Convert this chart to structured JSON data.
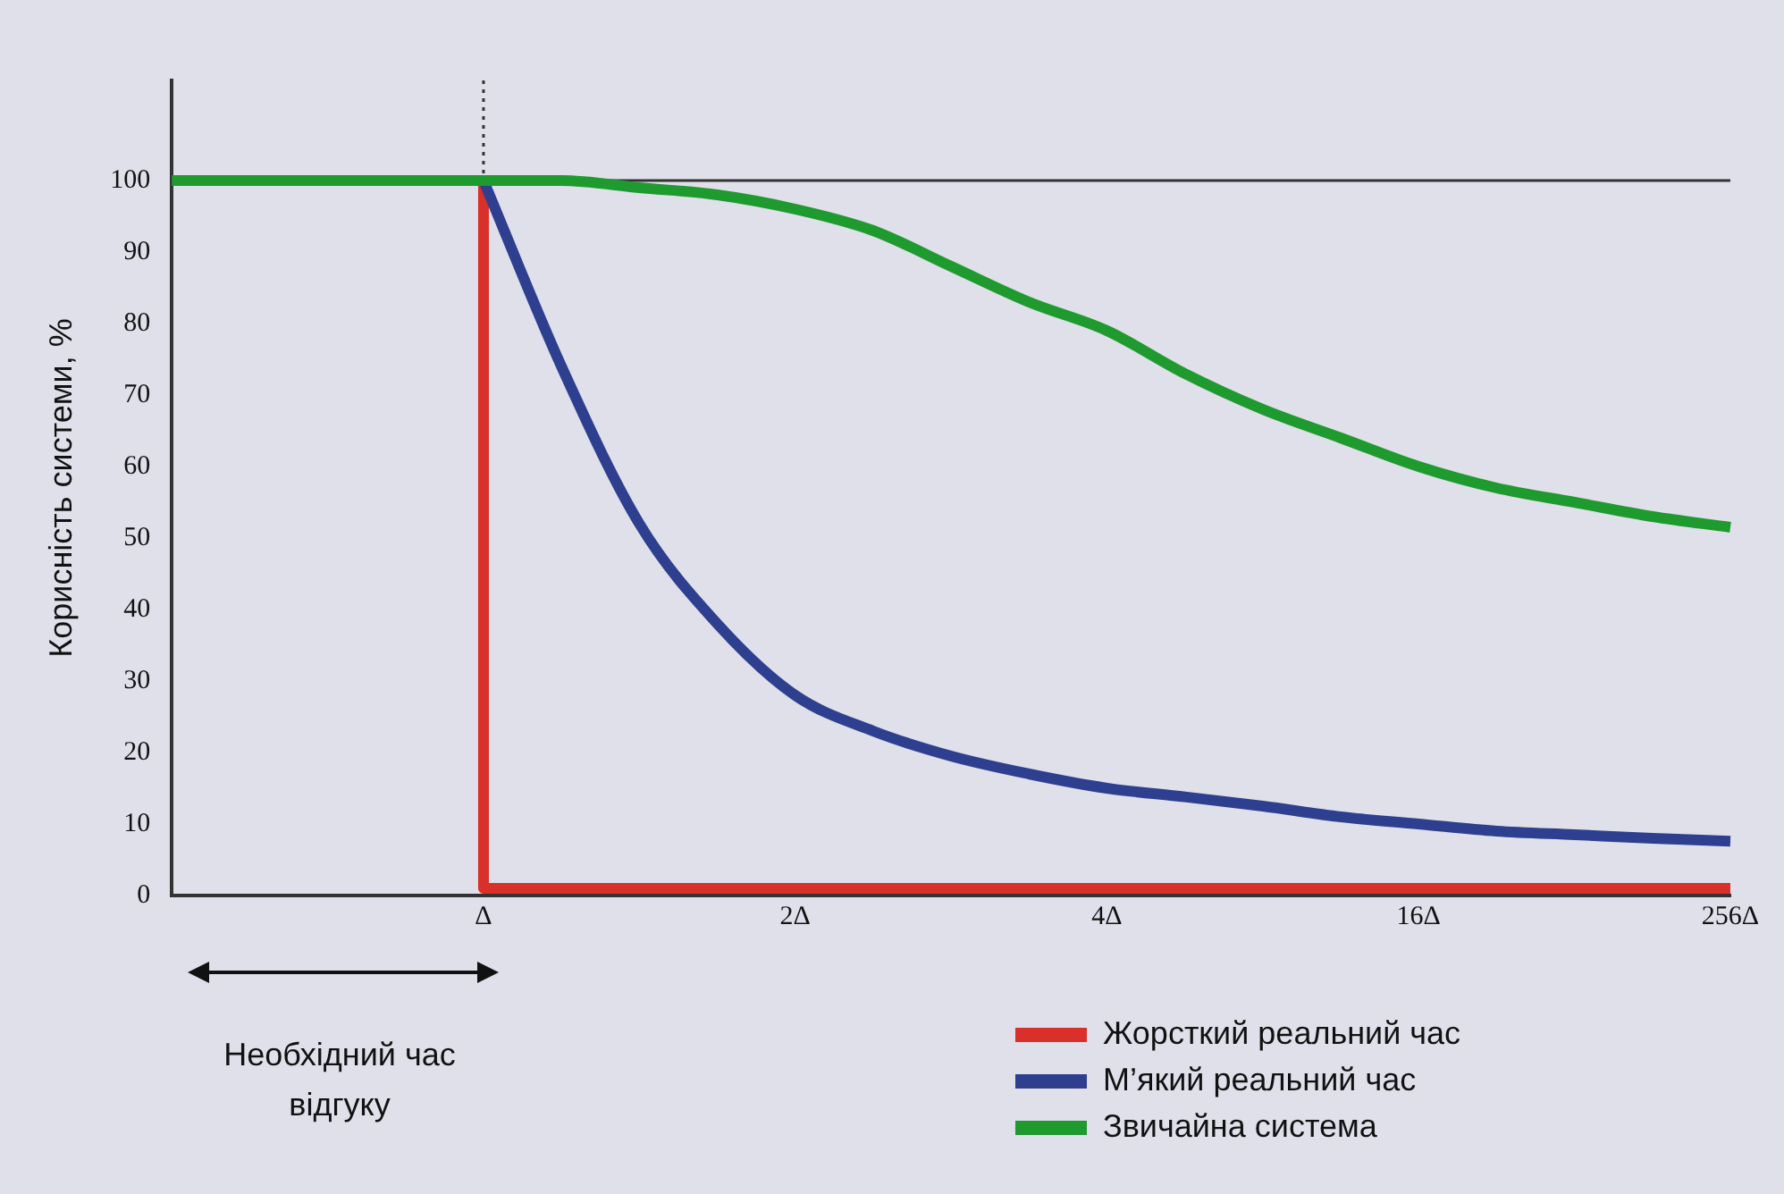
{
  "chart_data": {
    "type": "line",
    "ylabel": "Корисність системи, %",
    "categories": [
      null,
      null,
      null,
      null,
      "Δ",
      null,
      null,
      null,
      "2Δ",
      null,
      null,
      null,
      "4Δ",
      null,
      null,
      null,
      "16Δ",
      null,
      null,
      null,
      "256Δ"
    ],
    "ylim": [
      0,
      114
    ],
    "yticks": [
      0,
      10,
      20,
      30,
      40,
      50,
      60,
      70,
      80,
      90,
      100
    ],
    "series": [
      {
        "name": "Жорсткий реальний час",
        "type": "step",
        "color": "#d9302a",
        "values": [
          null,
          null,
          null,
          null,
          100,
          1,
          1,
          1,
          1,
          1,
          1,
          1,
          1,
          1,
          1,
          1,
          1,
          1,
          1,
          1,
          1
        ]
      },
      {
        "name": "М’який реальний час",
        "color": "#2e3f8f",
        "values": [
          null,
          null,
          null,
          null,
          100,
          74,
          52,
          38,
          28,
          23,
          19.5,
          17,
          15,
          13.8,
          12.5,
          11,
          10,
          9,
          8.5,
          8,
          7.6
        ]
      },
      {
        "name": "Звичайна система",
        "color": "#1f9a2e",
        "values": [
          100,
          100,
          100,
          100,
          100,
          100,
          99,
          98,
          96,
          93,
          88,
          83,
          79,
          73,
          68,
          64,
          60,
          57,
          55,
          53,
          51.5
        ]
      }
    ],
    "ref_lines": [
      {
        "axis": "y",
        "value": 100,
        "color": "#333333",
        "line_style": "solid"
      },
      {
        "axis": "x",
        "value": "Δ",
        "color": "#333333",
        "line_style": "dotted"
      }
    ],
    "annotations": [
      "Необхідний час відгуку"
    ],
    "legend": "bottom right",
    "grid": false,
    "marker": "none",
    "line_style": "solid"
  }
}
